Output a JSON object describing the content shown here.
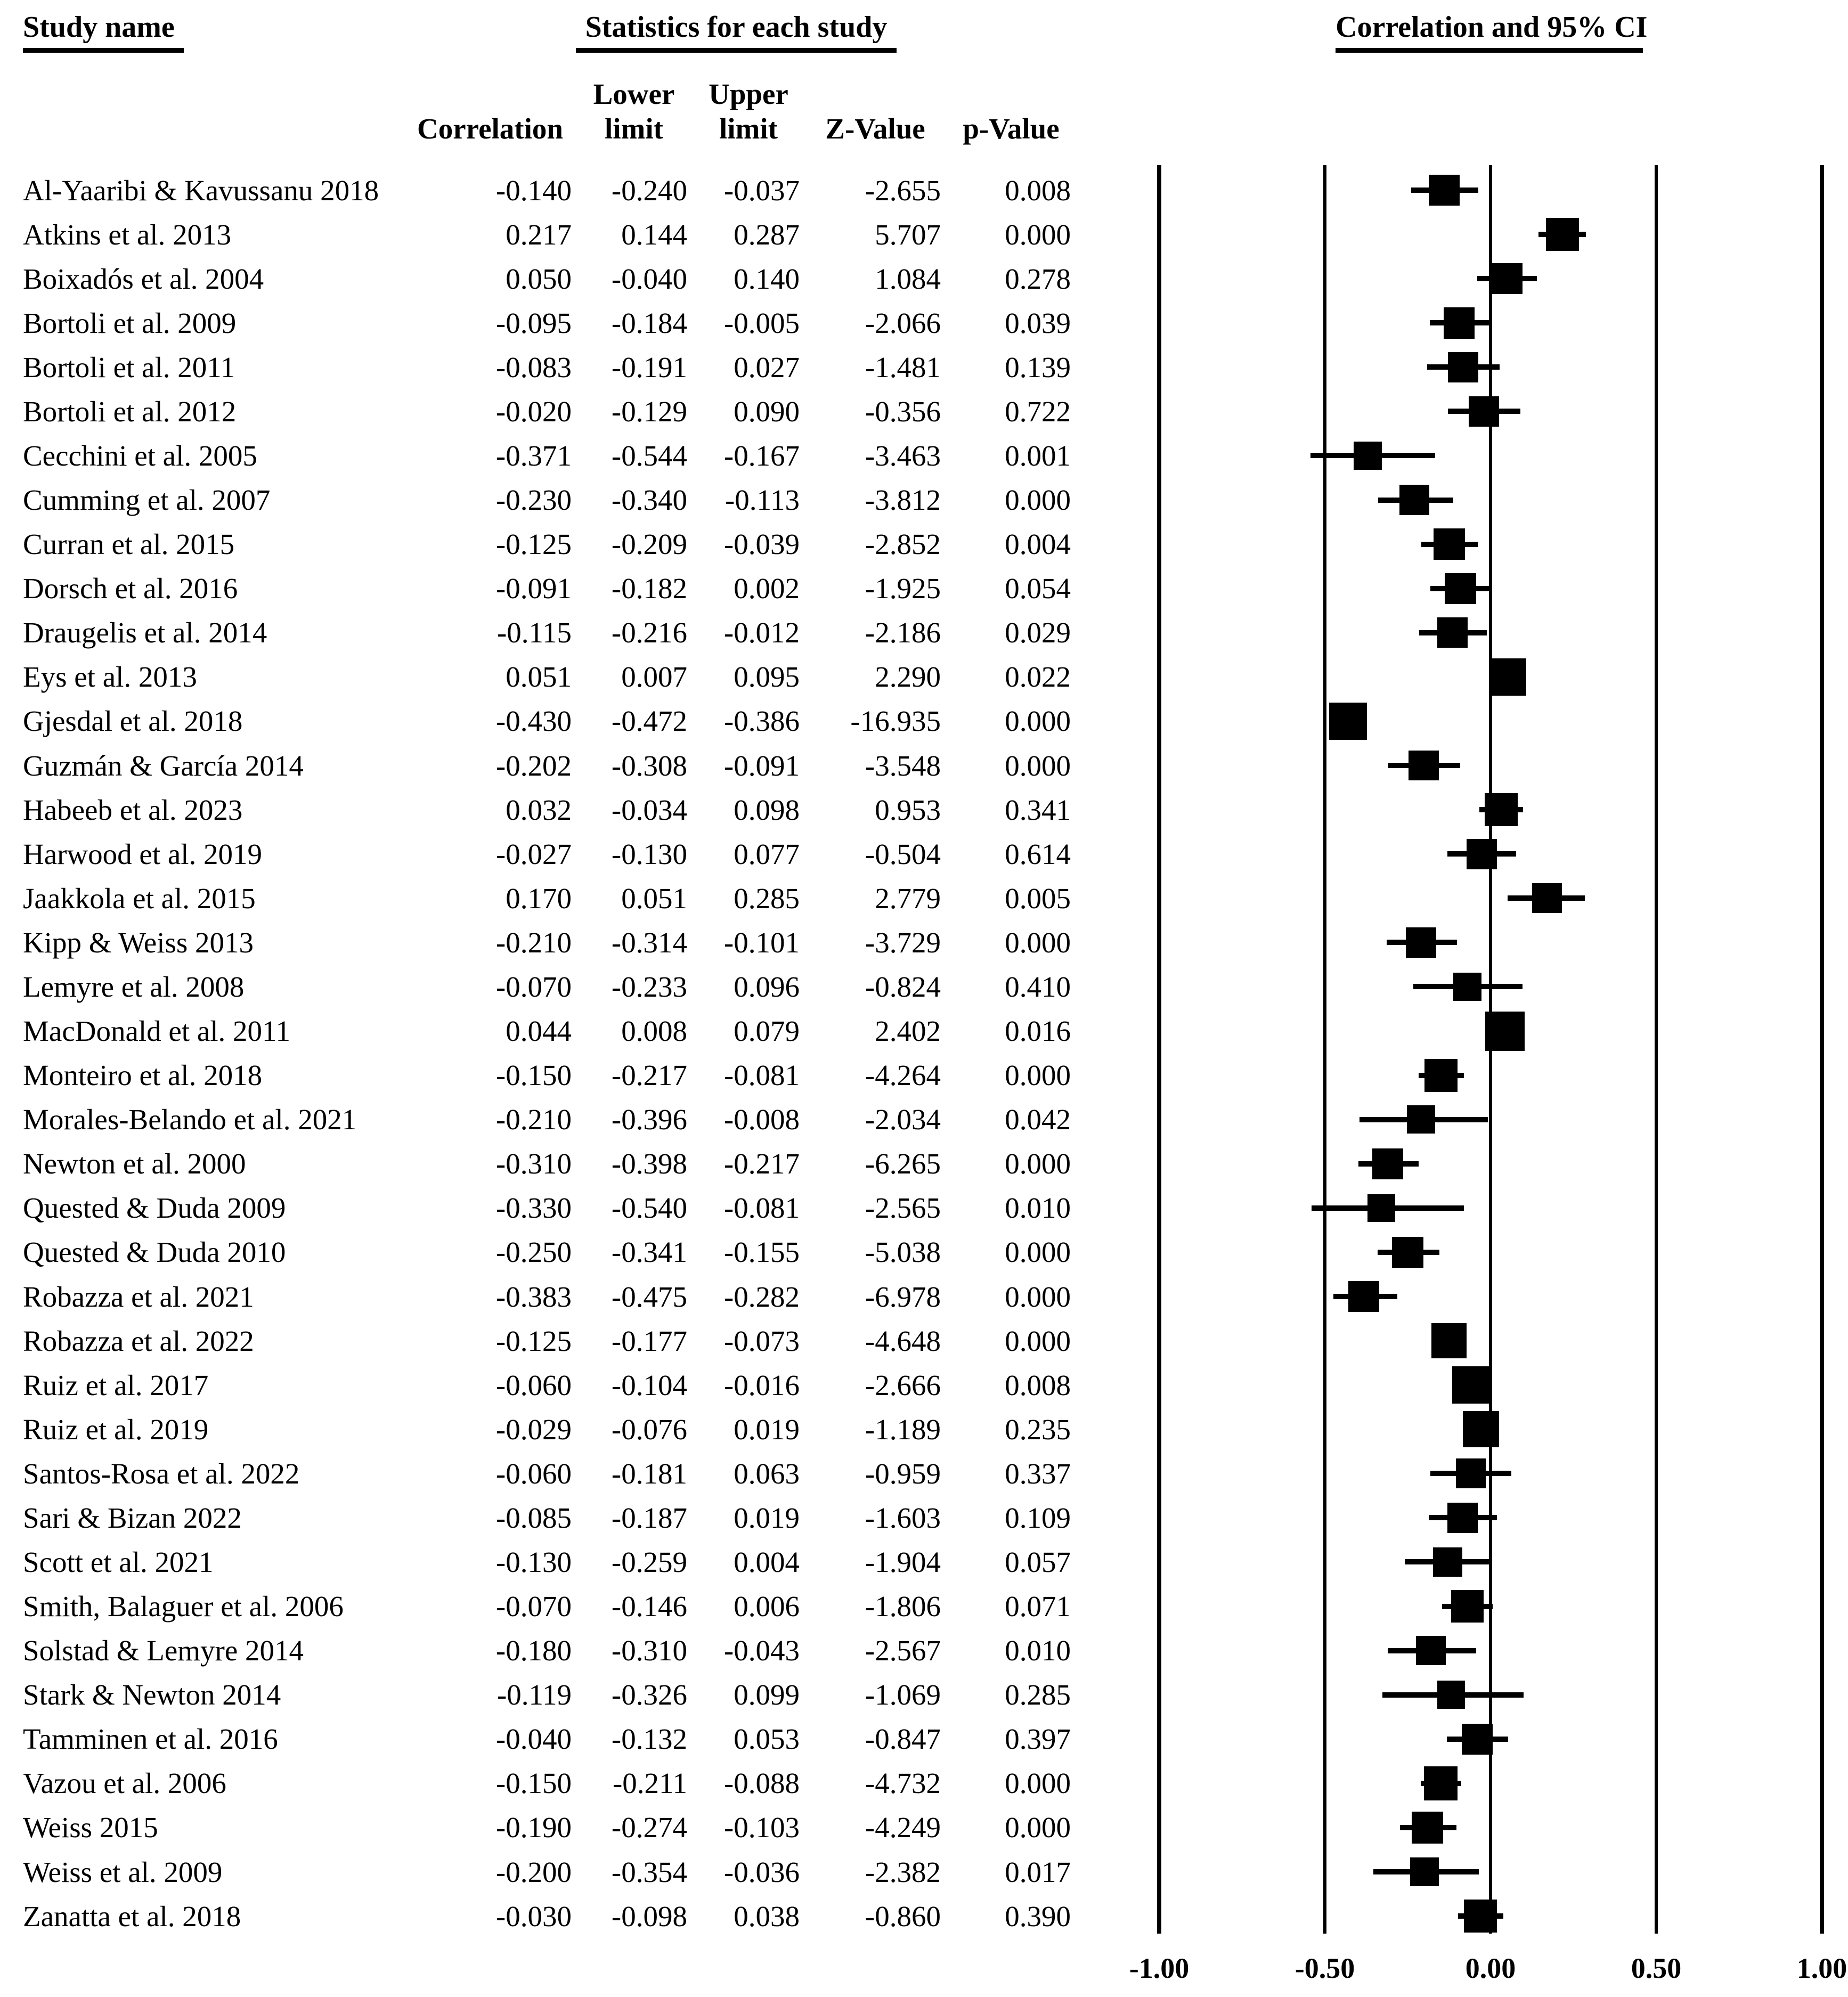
{
  "headers": {
    "study_name": "Study name",
    "statistics_group": "Statistics for each study",
    "plot_group": "Correlation and 95% CI",
    "columns": {
      "correlation": "Correlation",
      "lower_top": "Lower",
      "lower_bottom": "limit",
      "upper_top": "Upper",
      "upper_bottom": "limit",
      "z_value": "Z-Value",
      "p_value": "p-Value"
    }
  },
  "axis": {
    "tick_labels": [
      "-1.00",
      "-0.50",
      "0.00",
      "0.50",
      "1.00"
    ],
    "tick_values": [
      -1,
      -0.5,
      0,
      0.5,
      1
    ],
    "range": [
      -1,
      1
    ]
  },
  "colors": {
    "ink": "#000000",
    "background": "#ffffff"
  },
  "chart_data": {
    "type": "forest",
    "title": "Correlation and 95% CI",
    "x_axis_ticks": [
      -1.0,
      -0.5,
      0.0,
      0.5,
      1.0
    ],
    "x_range": [
      -1,
      1
    ],
    "grid": "vertical reference lines at ticks",
    "columns": [
      "Correlation",
      "Lower limit",
      "Upper limit",
      "Z-Value",
      "p-Value"
    ],
    "studies": [
      {
        "name": "Al-Yaaribi & Kavussanu 2018",
        "correlation": "-0.140",
        "lower": "-0.240",
        "upper": "-0.037",
        "z": "-2.655",
        "p": "0.008"
      },
      {
        "name": "Atkins et al. 2013",
        "correlation": "0.217",
        "lower": "0.144",
        "upper": "0.287",
        "z": "5.707",
        "p": "0.000"
      },
      {
        "name": "Boixadós et al. 2004",
        "correlation": "0.050",
        "lower": "-0.040",
        "upper": "0.140",
        "z": "1.084",
        "p": "0.278"
      },
      {
        "name": "Bortoli et al. 2009",
        "correlation": "-0.095",
        "lower": "-0.184",
        "upper": "-0.005",
        "z": "-2.066",
        "p": "0.039"
      },
      {
        "name": "Bortoli et al. 2011",
        "correlation": "-0.083",
        "lower": "-0.191",
        "upper": "0.027",
        "z": "-1.481",
        "p": "0.139"
      },
      {
        "name": "Bortoli et al. 2012",
        "correlation": "-0.020",
        "lower": "-0.129",
        "upper": "0.090",
        "z": "-0.356",
        "p": "0.722"
      },
      {
        "name": "Cecchini et al. 2005",
        "correlation": "-0.371",
        "lower": "-0.544",
        "upper": "-0.167",
        "z": "-3.463",
        "p": "0.001"
      },
      {
        "name": "Cumming et al. 2007",
        "correlation": "-0.230",
        "lower": "-0.340",
        "upper": "-0.113",
        "z": "-3.812",
        "p": "0.000"
      },
      {
        "name": "Curran et al. 2015",
        "correlation": "-0.125",
        "lower": "-0.209",
        "upper": "-0.039",
        "z": "-2.852",
        "p": "0.004"
      },
      {
        "name": "Dorsch et al. 2016",
        "correlation": "-0.091",
        "lower": "-0.182",
        "upper": "0.002",
        "z": "-1.925",
        "p": "0.054"
      },
      {
        "name": "Draugelis et al. 2014",
        "correlation": "-0.115",
        "lower": "-0.216",
        "upper": "-0.012",
        "z": "-2.186",
        "p": "0.029"
      },
      {
        "name": "Eys et al. 2013",
        "correlation": "0.051",
        "lower": "0.007",
        "upper": "0.095",
        "z": "2.290",
        "p": "0.022"
      },
      {
        "name": "Gjesdal et al. 2018",
        "correlation": "-0.430",
        "lower": "-0.472",
        "upper": "-0.386",
        "z": "-16.935",
        "p": "0.000"
      },
      {
        "name": "Guzmán & García 2014",
        "correlation": "-0.202",
        "lower": "-0.308",
        "upper": "-0.091",
        "z": "-3.548",
        "p": "0.000"
      },
      {
        "name": "Habeeb et al. 2023",
        "correlation": "0.032",
        "lower": "-0.034",
        "upper": "0.098",
        "z": "0.953",
        "p": "0.341"
      },
      {
        "name": "Harwood et al. 2019",
        "correlation": "-0.027",
        "lower": "-0.130",
        "upper": "0.077",
        "z": "-0.504",
        "p": "0.614"
      },
      {
        "name": "Jaakkola et al. 2015",
        "correlation": "0.170",
        "lower": "0.051",
        "upper": "0.285",
        "z": "2.779",
        "p": "0.005"
      },
      {
        "name": "Kipp & Weiss 2013",
        "correlation": "-0.210",
        "lower": "-0.314",
        "upper": "-0.101",
        "z": "-3.729",
        "p": "0.000"
      },
      {
        "name": "Lemyre et al. 2008",
        "correlation": "-0.070",
        "lower": "-0.233",
        "upper": "0.096",
        "z": "-0.824",
        "p": "0.410"
      },
      {
        "name": "MacDonald et al. 2011",
        "correlation": "0.044",
        "lower": "0.008",
        "upper": "0.079",
        "z": "2.402",
        "p": "0.016"
      },
      {
        "name": "Monteiro et al. 2018",
        "correlation": "-0.150",
        "lower": "-0.217",
        "upper": "-0.081",
        "z": "-4.264",
        "p": "0.000"
      },
      {
        "name": "Morales-Belando et al. 2021",
        "correlation": "-0.210",
        "lower": "-0.396",
        "upper": "-0.008",
        "z": "-2.034",
        "p": "0.042"
      },
      {
        "name": "Newton et al. 2000",
        "correlation": "-0.310",
        "lower": "-0.398",
        "upper": "-0.217",
        "z": "-6.265",
        "p": "0.000"
      },
      {
        "name": "Quested & Duda 2009",
        "correlation": "-0.330",
        "lower": "-0.540",
        "upper": "-0.081",
        "z": "-2.565",
        "p": "0.010"
      },
      {
        "name": "Quested & Duda 2010",
        "correlation": "-0.250",
        "lower": "-0.341",
        "upper": "-0.155",
        "z": "-5.038",
        "p": "0.000"
      },
      {
        "name": "Robazza et al. 2021",
        "correlation": "-0.383",
        "lower": "-0.475",
        "upper": "-0.282",
        "z": "-6.978",
        "p": "0.000"
      },
      {
        "name": "Robazza et al. 2022",
        "correlation": "-0.125",
        "lower": "-0.177",
        "upper": "-0.073",
        "z": "-4.648",
        "p": "0.000"
      },
      {
        "name": "Ruiz et al. 2017",
        "correlation": "-0.060",
        "lower": "-0.104",
        "upper": "-0.016",
        "z": "-2.666",
        "p": "0.008"
      },
      {
        "name": "Ruiz et al. 2019",
        "correlation": "-0.029",
        "lower": "-0.076",
        "upper": "0.019",
        "z": "-1.189",
        "p": "0.235"
      },
      {
        "name": "Santos-Rosa et al. 2022",
        "correlation": "-0.060",
        "lower": "-0.181",
        "upper": "0.063",
        "z": "-0.959",
        "p": "0.337"
      },
      {
        "name": "Sari & Bizan 2022",
        "correlation": "-0.085",
        "lower": "-0.187",
        "upper": "0.019",
        "z": "-1.603",
        "p": "0.109"
      },
      {
        "name": "Scott et al. 2021",
        "correlation": "-0.130",
        "lower": "-0.259",
        "upper": "0.004",
        "z": "-1.904",
        "p": "0.057"
      },
      {
        "name": "Smith, Balaguer et al. 2006",
        "correlation": "-0.070",
        "lower": "-0.146",
        "upper": "0.006",
        "z": "-1.806",
        "p": "0.071"
      },
      {
        "name": "Solstad & Lemyre 2014",
        "correlation": "-0.180",
        "lower": "-0.310",
        "upper": "-0.043",
        "z": "-2.567",
        "p": "0.010"
      },
      {
        "name": "Stark & Newton 2014",
        "correlation": "-0.119",
        "lower": "-0.326",
        "upper": "0.099",
        "z": "-1.069",
        "p": "0.285"
      },
      {
        "name": "Tamminen et al. 2016",
        "correlation": "-0.040",
        "lower": "-0.132",
        "upper": "0.053",
        "z": "-0.847",
        "p": "0.397"
      },
      {
        "name": "Vazou et al. 2006",
        "correlation": "-0.150",
        "lower": "-0.211",
        "upper": "-0.088",
        "z": "-4.732",
        "p": "0.000"
      },
      {
        "name": "Weiss 2015",
        "correlation": "-0.190",
        "lower": "-0.274",
        "upper": "-0.103",
        "z": "-4.249",
        "p": "0.000"
      },
      {
        "name": "Weiss et al. 2009",
        "correlation": "-0.200",
        "lower": "-0.354",
        "upper": "-0.036",
        "z": "-2.382",
        "p": "0.017"
      },
      {
        "name": "Zanatta et al. 2018",
        "correlation": "-0.030",
        "lower": "-0.098",
        "upper": "0.038",
        "z": "-0.860",
        "p": "0.390"
      }
    ]
  }
}
